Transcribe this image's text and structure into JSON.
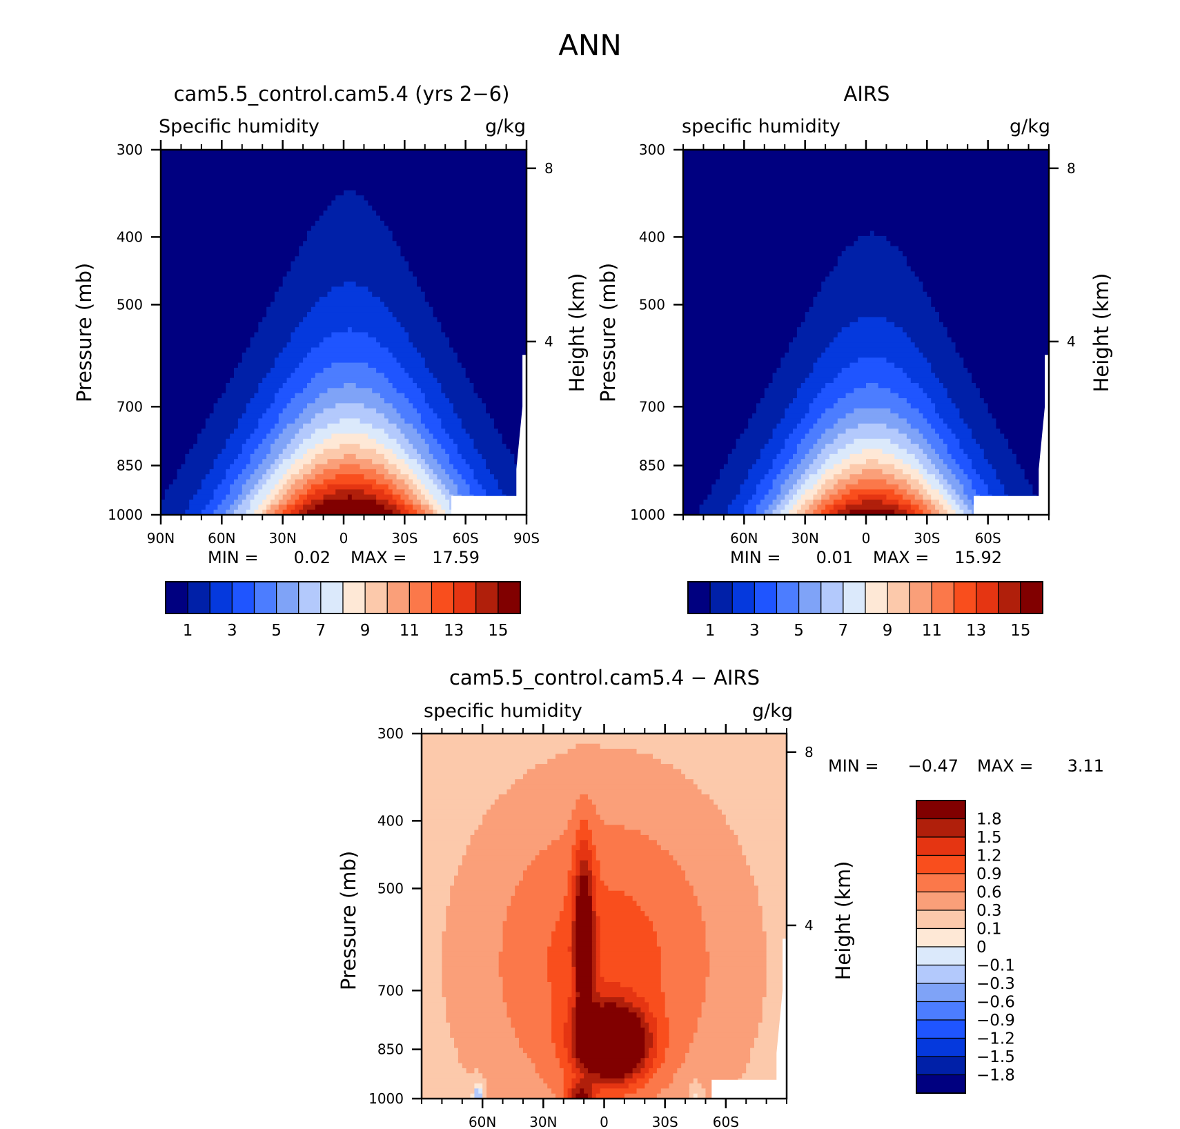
{
  "figure": {
    "title": "ANN"
  },
  "colors": {
    "absolute": [
      "#000080",
      "#0020a8",
      "#0539dd",
      "#1f55ff",
      "#4c7dff",
      "#7fa3f7",
      "#b3c9fc",
      "#dbe9fb",
      "#fee8d6",
      "#fcc9ab",
      "#fa9f79",
      "#fb784a",
      "#f94e1d",
      "#e53512",
      "#b01f0b",
      "#810000"
    ],
    "difference": [
      "#000080",
      "#0020a8",
      "#0539dd",
      "#1f55ff",
      "#4c7dff",
      "#7fa3f7",
      "#b3c9fc",
      "#dbe9fb",
      "#fee8d6",
      "#fcc9ab",
      "#fa9f79",
      "#fb784a",
      "#f94e1d",
      "#e53512",
      "#b01f0b",
      "#810000"
    ]
  },
  "chart_data": [
    {
      "type": "heatmap",
      "title": "cam5.5_control.cam5.4 (yrs 2-6)",
      "subtitle_left": "Specific humidity",
      "subtitle_right": "g/kg",
      "ylabel": "Pressure (mb)",
      "ylabel_right": "Height (km)",
      "x_ticks": [
        "90N",
        "60N",
        "30N",
        "0",
        "30S",
        "60S",
        "90S"
      ],
      "x_tick_values": [
        90,
        60,
        30,
        0,
        -30,
        -60,
        -90
      ],
      "y_ticks": [
        "300",
        "400",
        "500",
        "700",
        "850",
        "1000"
      ],
      "y_tick_values": [
        300,
        400,
        500,
        700,
        850,
        1000
      ],
      "y_scale": "log",
      "ylim": [
        300,
        1000
      ],
      "y_right_ticks": [
        "8",
        "4"
      ],
      "xlim": [
        90,
        -90
      ],
      "min_label": "MIN =",
      "min_value": "0.02",
      "max_label": "MAX =",
      "max_value": "17.59",
      "colorbar_labels": [
        "1",
        "3",
        "5",
        "7",
        "9",
        "11",
        "13",
        "15"
      ],
      "levels": [
        1,
        2,
        3,
        4,
        5,
        6,
        7,
        8,
        9,
        10,
        11,
        12,
        13,
        14,
        15
      ],
      "field": {
        "peak_value": 17.59,
        "peak_lat": -3,
        "surface_width_deg": 58,
        "height_scale": 1.0
      }
    },
    {
      "type": "heatmap",
      "title": "AIRS",
      "subtitle_left": "specific humidity",
      "subtitle_right": "g/kg",
      "ylabel": "Pressure (mb)",
      "ylabel_right": "Height (km)",
      "x_ticks": [
        "60N",
        "30N",
        "0",
        "30S",
        "60S"
      ],
      "x_tick_values": [
        60,
        30,
        0,
        -30,
        -60
      ],
      "y_ticks": [
        "300",
        "400",
        "500",
        "700",
        "850",
        "1000"
      ],
      "y_tick_values": [
        300,
        400,
        500,
        700,
        850,
        1000
      ],
      "y_scale": "log",
      "ylim": [
        300,
        1000
      ],
      "y_right_ticks": [
        "8",
        "4"
      ],
      "xlim": [
        90,
        -90
      ],
      "min_label": "MIN =",
      "min_value": "0.01",
      "max_label": "MAX =",
      "max_value": "15.92",
      "colorbar_labels": [
        "1",
        "3",
        "5",
        "7",
        "9",
        "11",
        "13",
        "15"
      ],
      "levels": [
        1,
        2,
        3,
        4,
        5,
        6,
        7,
        8,
        9,
        10,
        11,
        12,
        13,
        14,
        15
      ],
      "field": {
        "peak_value": 15.92,
        "peak_lat": -3,
        "surface_width_deg": 52,
        "height_scale": 0.9
      }
    },
    {
      "type": "heatmap",
      "title": "cam5.5_control.cam5.4 - AIRS",
      "subtitle_left": "specific humidity",
      "subtitle_right": "g/kg",
      "ylabel": "Pressure (mb)",
      "ylabel_right": "Height (km)",
      "x_ticks": [
        "60N",
        "30N",
        "0",
        "30S",
        "60S"
      ],
      "x_tick_values": [
        60,
        30,
        0,
        -30,
        -60
      ],
      "y_ticks": [
        "300",
        "400",
        "500",
        "700",
        "850",
        "1000"
      ],
      "y_tick_values": [
        300,
        400,
        500,
        700,
        850,
        1000
      ],
      "y_scale": "log",
      "ylim": [
        300,
        1000
      ],
      "y_right_ticks": [
        "8",
        "4"
      ],
      "xlim": [
        90,
        -90
      ],
      "min_label": "MIN =",
      "min_value": "-0.47",
      "max_label": "MAX =",
      "max_value": "3.11",
      "colorbar_labels": [
        "1.8",
        "1.5",
        "1.2",
        "0.9",
        "0.6",
        "0.3",
        "0.1",
        "0",
        "-0.1",
        "-0.3",
        "-0.6",
        "-0.9",
        "-1.2",
        "-1.5",
        "-1.8"
      ],
      "levels": [
        -1.8,
        -1.5,
        -1.2,
        -0.9,
        -0.6,
        -0.3,
        -0.1,
        0,
        0.1,
        0.3,
        0.6,
        0.9,
        1.2,
        1.5,
        1.8
      ]
    }
  ]
}
